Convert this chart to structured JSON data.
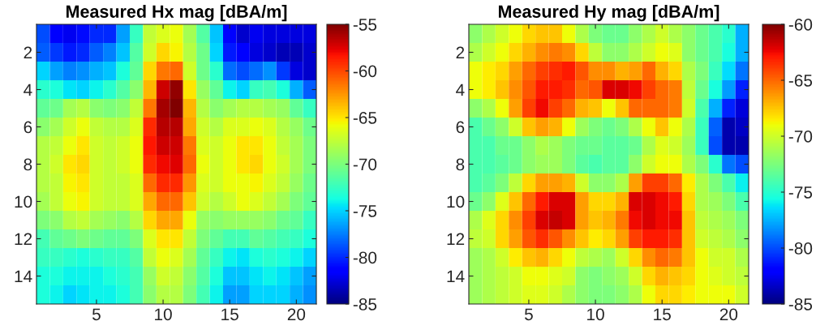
{
  "chart_data": [
    {
      "type": "heatmap",
      "title": "Measured Hx mag [dBA/m]",
      "categories": [
        null,
        null,
        null,
        null,
        "5",
        null,
        null,
        null,
        null,
        "10",
        null,
        null,
        null,
        null,
        "15",
        null,
        null,
        null,
        null,
        "20",
        null
      ],
      "y_categories": [
        null,
        "2",
        null,
        "4",
        null,
        "6",
        null,
        "8",
        null,
        "10",
        null,
        "12",
        null,
        "14",
        null
      ],
      "clim": [
        -85,
        -55
      ],
      "cticks": [
        -85,
        -80,
        -75,
        -70,
        -65,
        -60,
        -55
      ],
      "cells": [
        [
          -79,
          -81.5,
          -82,
          -81,
          -80,
          -80,
          -76.5,
          -72.5,
          -67.5,
          -66.5,
          -66,
          -68.5,
          -71.5,
          -75.5,
          -81.5,
          -83,
          -82,
          -82.5,
          -82.5,
          -82.5,
          -82.5
        ],
        [
          -78.5,
          -79.5,
          -80.5,
          -80,
          -78.5,
          -77.5,
          -75.5,
          -71.5,
          -67,
          -64.5,
          -65.5,
          -68,
          -70.5,
          -75,
          -80.5,
          -81.5,
          -82.5,
          -83,
          -83.5,
          -83.5,
          -83
        ],
        [
          -75,
          -76.5,
          -77.5,
          -77,
          -76,
          -75.5,
          -73.5,
          -71,
          -64.5,
          -61.5,
          -61,
          -67,
          -70.5,
          -73,
          -78,
          -79,
          -78,
          -77,
          -79.5,
          -82.5,
          -83
        ],
        [
          -73,
          -73.5,
          -74.5,
          -75,
          -74,
          -73,
          -71.5,
          -69.5,
          -63.5,
          -57,
          -55.5,
          -65,
          -69,
          -71,
          -74,
          -75,
          -72.5,
          -72,
          -73.5,
          -76,
          -78.5
        ],
        [
          -71,
          -70.5,
          -68.5,
          -68,
          -69.5,
          -70,
          -69.5,
          -67.5,
          -61.5,
          -56,
          -55,
          -63.5,
          -68,
          -69.5,
          -68.5,
          -68,
          -68,
          -68.5,
          -69,
          -71,
          -72.5
        ],
        [
          -69.5,
          -68.5,
          -67,
          -66,
          -67.5,
          -68,
          -68,
          -66.5,
          -59,
          -56.5,
          -56.5,
          -63,
          -67,
          -68,
          -66.5,
          -66.5,
          -66,
          -66.5,
          -68,
          -69,
          -70.5
        ],
        [
          -68,
          -67.5,
          -66,
          -65,
          -67,
          -67.5,
          -67,
          -66,
          -58.5,
          -57,
          -57,
          -61.5,
          -66.5,
          -67,
          -66,
          -65,
          -65,
          -66,
          -67.5,
          -68.5,
          -70
        ],
        [
          -68,
          -67,
          -65,
          -64.5,
          -67,
          -67.5,
          -67,
          -66,
          -59,
          -58,
          -57.5,
          -61,
          -66,
          -67,
          -66,
          -65,
          -64.5,
          -66,
          -67,
          -68.5,
          -70
        ],
        [
          -68,
          -67.5,
          -65.5,
          -65,
          -67,
          -67.5,
          -67.5,
          -66.5,
          -61,
          -59,
          -59,
          -62.5,
          -66.5,
          -67,
          -66,
          -66,
          -65.5,
          -66.5,
          -67.5,
          -69,
          -70.5
        ],
        [
          -68.5,
          -67.5,
          -66,
          -65.5,
          -67,
          -67.5,
          -67.5,
          -66.5,
          -63,
          -61,
          -61,
          -64,
          -67,
          -68,
          -67,
          -66,
          -66.5,
          -67.5,
          -68.5,
          -70,
          -71
        ],
        [
          -70,
          -69.5,
          -68,
          -67.5,
          -68.5,
          -69,
          -69.5,
          -68,
          -64.5,
          -63,
          -63,
          -66,
          -69,
          -69.5,
          -69,
          -69,
          -69,
          -69.5,
          -70.5,
          -71,
          -72.5
        ],
        [
          -72,
          -71,
          -70.5,
          -70,
          -70.5,
          -71,
          -71,
          -70,
          -66.5,
          -65,
          -65,
          -67.5,
          -70,
          -71,
          -72,
          -72,
          -71,
          -71.5,
          -72,
          -72.5,
          -73.5
        ],
        [
          -72.5,
          -72.5,
          -73,
          -73.5,
          -73,
          -72.5,
          -72.5,
          -71.5,
          -67.5,
          -66,
          -66.5,
          -68.5,
          -71,
          -72.5,
          -74,
          -74.5,
          -73.5,
          -73,
          -73.5,
          -74,
          -75
        ],
        [
          -73.5,
          -73.5,
          -74,
          -74,
          -74,
          -73.5,
          -73,
          -72,
          -69,
          -67,
          -67.5,
          -69.5,
          -71.5,
          -73.5,
          -75.5,
          -75.5,
          -74.5,
          -74,
          -74.5,
          -75.5,
          -76.5
        ],
        [
          -73.5,
          -74,
          -75,
          -74.5,
          -74,
          -74,
          -73.5,
          -72,
          -69.5,
          -68,
          -68,
          -70,
          -72,
          -74,
          -76.5,
          -76.5,
          -75,
          -75,
          -75,
          -76,
          -77
        ]
      ]
    },
    {
      "type": "heatmap",
      "title": "Measured Hy mag [dBA/m]",
      "categories": [
        null,
        null,
        null,
        null,
        "5",
        null,
        null,
        null,
        null,
        "10",
        null,
        null,
        null,
        null,
        "15",
        null,
        null,
        null,
        null,
        "20",
        null
      ],
      "y_categories": [
        null,
        "2",
        null,
        "4",
        null,
        "6",
        null,
        "8",
        null,
        "10",
        null,
        "12",
        null,
        "14",
        null
      ],
      "clim": [
        -85,
        -60
      ],
      "cticks": [
        -85,
        -80,
        -75,
        -70,
        -65,
        -60
      ],
      "cells": [
        [
          -72,
          -71,
          -70,
          -69,
          -68,
          -67.5,
          -67.5,
          -69,
          -71,
          -72.5,
          -73,
          -73,
          -72,
          -71,
          -70,
          -71,
          -72,
          -73,
          -74,
          -75,
          -77.5
        ],
        [
          -71,
          -70,
          -69,
          -68,
          -67,
          -66,
          -65.5,
          -66,
          -68,
          -70.5,
          -72,
          -72,
          -71,
          -70,
          -69,
          -69.5,
          -72,
          -73,
          -74,
          -75.5,
          -77.5
        ],
        [
          -69,
          -68.5,
          -68,
          -66.5,
          -65,
          -64,
          -63.5,
          -63,
          -64.5,
          -66,
          -66,
          -67,
          -66.5,
          -65,
          -67,
          -68,
          -71,
          -72.5,
          -74.5,
          -76.5,
          -79
        ],
        [
          -69,
          -68.5,
          -67.5,
          -66,
          -64.5,
          -63,
          -63,
          -63.5,
          -65,
          -64.5,
          -62,
          -62,
          -62.5,
          -64,
          -65,
          -65.5,
          -70.5,
          -73,
          -75.5,
          -78,
          -81
        ],
        [
          -72,
          -71,
          -69,
          -66.5,
          -64,
          -62.5,
          -64,
          -65,
          -67,
          -67.5,
          -69,
          -67.5,
          -65,
          -65,
          -65,
          -65.5,
          -70,
          -74,
          -77.5,
          -81,
          -83
        ],
        [
          -74,
          -73,
          -72,
          -70,
          -67.5,
          -66.5,
          -67,
          -69,
          -71.5,
          -72.5,
          -73,
          -72.5,
          -71,
          -69,
          -67.5,
          -69,
          -71,
          -74.5,
          -79.5,
          -84,
          -83.5
        ],
        [
          -74,
          -74,
          -73,
          -73,
          -72,
          -71,
          -71.5,
          -72.5,
          -73,
          -73,
          -73.5,
          -73.5,
          -73,
          -71,
          -69.5,
          -70,
          -71.5,
          -74.5,
          -80,
          -84,
          -84
        ],
        [
          -74,
          -74,
          -73.5,
          -73,
          -72,
          -71.5,
          -71.5,
          -72.5,
          -73.5,
          -74,
          -73.5,
          -73.5,
          -72,
          -70,
          -69,
          -69,
          -71,
          -72.5,
          -75,
          -79,
          -80
        ],
        [
          -74,
          -73.5,
          -72.5,
          -70.5,
          -68,
          -66.5,
          -66.5,
          -67,
          -70,
          -72,
          -72,
          -71,
          -66.5,
          -64,
          -64,
          -65,
          -68.5,
          -71,
          -72.5,
          -74,
          -76
        ],
        [
          -73,
          -72,
          -69.5,
          -67.5,
          -65,
          -63,
          -62,
          -62,
          -66.5,
          -68,
          -68,
          -67,
          -62,
          -62,
          -62.5,
          -63,
          -68,
          -71,
          -71.5,
          -72.5,
          -74
        ],
        [
          -71,
          -69.5,
          -68,
          -66,
          -64,
          -62,
          -61.5,
          -62,
          -66.5,
          -67.5,
          -67,
          -65.5,
          -62.5,
          -62,
          -62.5,
          -62.5,
          -67.5,
          -70.5,
          -71,
          -71.5,
          -72.5
        ],
        [
          -70.5,
          -70,
          -68,
          -66.5,
          -64.5,
          -63.5,
          -64.5,
          -66,
          -67.5,
          -68.5,
          -68,
          -66.5,
          -64,
          -63,
          -63,
          -63.5,
          -67.5,
          -70,
          -70.5,
          -71,
          -72
        ],
        [
          -71.5,
          -71,
          -70,
          -68.5,
          -67.5,
          -67,
          -68,
          -69,
          -70.5,
          -71,
          -71.5,
          -70,
          -68,
          -66,
          -65,
          -65.5,
          -67.5,
          -69,
          -70,
          -70,
          -71
        ],
        [
          -71.5,
          -71,
          -70.5,
          -70,
          -69,
          -69,
          -69.5,
          -70,
          -72,
          -72.5,
          -72,
          -71.5,
          -70,
          -68,
          -67,
          -67.5,
          -68,
          -69,
          -69.5,
          -70,
          -70.5
        ],
        [
          -71.5,
          -71,
          -70.5,
          -70,
          -69.5,
          -69.5,
          -70,
          -71,
          -72,
          -72.5,
          -72.5,
          -72,
          -71,
          -69,
          -68,
          -68,
          -68.5,
          -69,
          -69,
          -69,
          -70
        ]
      ]
    }
  ]
}
